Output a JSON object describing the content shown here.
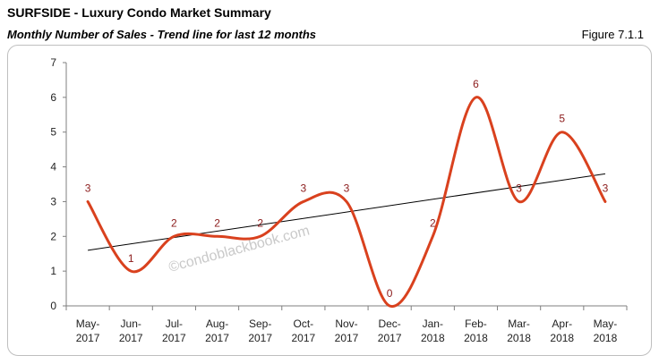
{
  "header": {
    "title": "SURFSIDE - Luxury Condo Market Summary",
    "subtitle": "Monthly Number of Sales - Trend line for last 12 months",
    "figure_label": "Figure 7.1.1"
  },
  "watermark": "©condoblackbook.com",
  "colors": {
    "series": "#d9411e",
    "trend": "#000000",
    "label": "#8b1a1a"
  },
  "chart_data": {
    "type": "line",
    "categories": [
      "May-2017",
      "Jun-2017",
      "Jul-2017",
      "Aug-2017",
      "Sep-2017",
      "Oct-2017",
      "Nov-2017",
      "Dec-2017",
      "Jan-2018",
      "Feb-2018",
      "Mar-2018",
      "Apr-2018",
      "May-2018"
    ],
    "category_lines": [
      [
        "May-",
        "2017"
      ],
      [
        "Jun-",
        "2017"
      ],
      [
        "Jul-",
        "2017"
      ],
      [
        "Aug-",
        "2017"
      ],
      [
        "Sep-",
        "2017"
      ],
      [
        "Oct-",
        "2017"
      ],
      [
        "Nov-",
        "2017"
      ],
      [
        "Dec-",
        "2017"
      ],
      [
        "Jan-",
        "2018"
      ],
      [
        "Feb-",
        "2018"
      ],
      [
        "Mar-",
        "2018"
      ],
      [
        "Apr-",
        "2018"
      ],
      [
        "May-",
        "2018"
      ]
    ],
    "series": [
      {
        "values": [
          3,
          1,
          2,
          2,
          2,
          3,
          3,
          0,
          2,
          6,
          3,
          5,
          3
        ],
        "smooth": true
      }
    ],
    "trendline": {
      "type": "linear",
      "start": 1.6,
      "end": 3.8
    },
    "ylim": [
      0,
      7
    ],
    "yticks": [
      0,
      1,
      2,
      3,
      4,
      5,
      6,
      7
    ],
    "grid": false,
    "legend": "none",
    "xlabel": "",
    "ylabel": ""
  }
}
